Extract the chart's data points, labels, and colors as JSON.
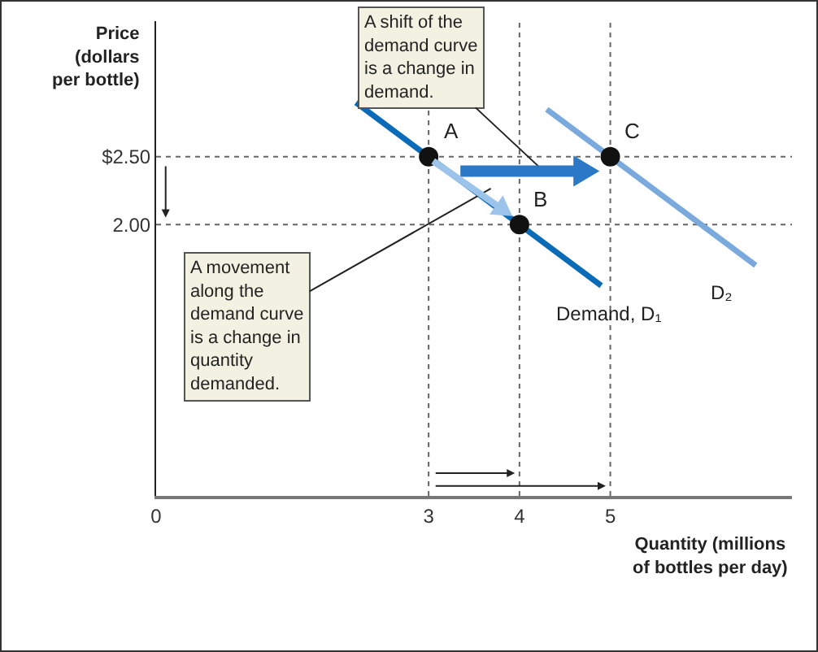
{
  "chart_data": {
    "type": "line",
    "xlabel": "Quantity (millions\nof bottles per day)",
    "ylabel": "Price\n(dollars\nper bottle)",
    "xlim": [
      0,
      7
    ],
    "ylim": [
      0,
      3.5
    ],
    "xticks": [
      0,
      3,
      4,
      5
    ],
    "yticks": [
      {
        "value": 2,
        "label": "2.00"
      },
      {
        "value": 2.5,
        "label": "$2.50"
      }
    ],
    "grid": false,
    "legend": false,
    "line_style": "solid",
    "series": [
      {
        "name": "Demand, D₁",
        "color": "#0a6cb8",
        "x": [
          2.2,
          3,
          4,
          4.9
        ],
        "values": [
          2.9,
          2.5,
          2.0,
          1.55
        ],
        "marker": "none"
      },
      {
        "name": "D₂",
        "color": "#7aaadd",
        "x": [
          4.3,
          5,
          6.6
        ],
        "values": [
          2.85,
          2.5,
          1.7
        ],
        "marker": "none"
      },
      {
        "type": "scatter",
        "color": "#111111",
        "x": [
          3,
          4,
          5
        ],
        "values": [
          2.5,
          2.0,
          2.5
        ],
        "marker": "circle"
      }
    ],
    "ref_lines": [
      {
        "axis": "y",
        "value": 2.5,
        "color": "#666666",
        "line_style": "dotted"
      },
      {
        "axis": "y",
        "value": 2,
        "color": "#666666",
        "line_style": "dotted"
      },
      {
        "axis": "x",
        "value": 3,
        "color": "#666666",
        "line_style": "dotted"
      },
      {
        "axis": "x",
        "value": 4,
        "color": "#666666",
        "line_style": "dotted"
      },
      {
        "axis": "x",
        "value": 5,
        "color": "#666666",
        "line_style": "dotted"
      }
    ],
    "annotations": [
      "A shift of the\ndemand curve\nis a change in\ndemand.",
      "A movement\nalong the\ndemand curve\nis a change in\nquantity\ndemanded.",
      {
        "text": "A",
        "x": 3,
        "y": 2.5
      },
      {
        "text": "B",
        "x": 4,
        "y": 2.0
      },
      {
        "text": "C",
        "x": 5,
        "y": 2.5
      }
    ]
  }
}
